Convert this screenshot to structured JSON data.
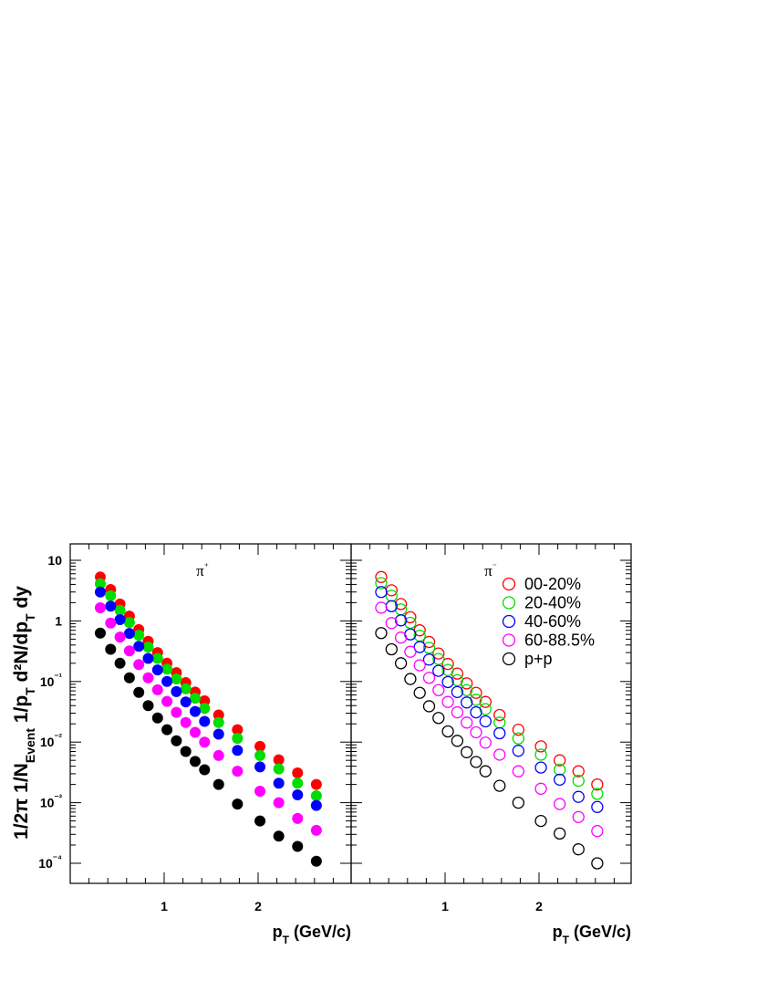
{
  "figure": {
    "ylabel": "1/2π 1/N_Event 1/p_T d²N/dp_T dy",
    "ytick_labels": [
      "10",
      "1",
      "10⁻¹",
      "10⁻²",
      "10⁻³",
      "10⁻⁴"
    ]
  },
  "chart_data": [
    {
      "type": "scatter",
      "panel": "left",
      "title": "π⁺",
      "marker": "filled",
      "xlabel": "p_T (GeV/c)",
      "x_scale": "linear",
      "y_scale": "log",
      "xlim": [
        0.0,
        3.0
      ],
      "ylim": [
        5e-05,
        20
      ],
      "xtick_labels": [
        "1",
        "2"
      ],
      "grid": false,
      "x": [
        0.32,
        0.43,
        0.53,
        0.63,
        0.73,
        0.83,
        0.93,
        1.03,
        1.13,
        1.23,
        1.33,
        1.43,
        1.58,
        1.78,
        2.02,
        2.22,
        2.42,
        2.62
      ],
      "series": [
        {
          "name": "00-20%",
          "color": "#ff0000",
          "values": [
            5.3,
            3.3,
            1.9,
            1.2,
            0.72,
            0.46,
            0.3,
            0.2,
            0.14,
            0.096,
            0.067,
            0.048,
            0.028,
            0.016,
            0.0085,
            0.0051,
            0.0031,
            0.002
          ]
        },
        {
          "name": "20-40%",
          "color": "#00dd00",
          "values": [
            4.1,
            2.6,
            1.5,
            0.94,
            0.58,
            0.37,
            0.24,
            0.16,
            0.11,
            0.076,
            0.053,
            0.036,
            0.021,
            0.0115,
            0.006,
            0.0036,
            0.0021,
            0.0013
          ]
        },
        {
          "name": "40-60%",
          "color": "#0000ff",
          "values": [
            3.0,
            1.75,
            1.05,
            0.62,
            0.38,
            0.24,
            0.155,
            0.1,
            0.068,
            0.046,
            0.032,
            0.022,
            0.0135,
            0.0073,
            0.0039,
            0.0021,
            0.00135,
            0.0009
          ]
        },
        {
          "name": "60-88.5%",
          "color": "#ff00ff",
          "values": [
            1.65,
            0.92,
            0.54,
            0.32,
            0.19,
            0.115,
            0.073,
            0.047,
            0.031,
            0.021,
            0.0145,
            0.01,
            0.006,
            0.0033,
            0.00155,
            0.001,
            0.00055,
            0.00035
          ]
        },
        {
          "name": "p+p",
          "color": "#000000",
          "values": [
            0.63,
            0.34,
            0.2,
            0.115,
            0.066,
            0.04,
            0.025,
            0.016,
            0.0105,
            0.007,
            0.0048,
            0.0035,
            0.002,
            0.00095,
            0.0005,
            0.00028,
            0.00019,
            0.000108
          ]
        }
      ]
    },
    {
      "type": "scatter",
      "panel": "right",
      "title": "π⁻",
      "marker": "open",
      "xlabel": "p_T (GeV/c)",
      "x_scale": "linear",
      "y_scale": "log",
      "xlim": [
        0.0,
        3.0
      ],
      "ylim": [
        5e-05,
        20
      ],
      "xtick_labels": [
        "1",
        "2"
      ],
      "grid": false,
      "legend": "top-right",
      "x": [
        0.32,
        0.43,
        0.53,
        0.63,
        0.73,
        0.83,
        0.93,
        1.03,
        1.13,
        1.23,
        1.33,
        1.43,
        1.58,
        1.78,
        2.02,
        2.22,
        2.42,
        2.62
      ],
      "series": [
        {
          "name": "00-20%",
          "color": "#ff0000",
          "values": [
            5.3,
            3.2,
            1.9,
            1.15,
            0.7,
            0.45,
            0.29,
            0.195,
            0.135,
            0.093,
            0.065,
            0.046,
            0.028,
            0.016,
            0.0085,
            0.005,
            0.0033,
            0.002
          ]
        },
        {
          "name": "20-40%",
          "color": "#00dd00",
          "values": [
            4.2,
            2.6,
            1.55,
            0.93,
            0.57,
            0.36,
            0.235,
            0.155,
            0.105,
            0.072,
            0.05,
            0.035,
            0.021,
            0.0115,
            0.0062,
            0.0035,
            0.0023,
            0.0014
          ]
        },
        {
          "name": "40-60%",
          "color": "#0000ff",
          "values": [
            3.0,
            1.75,
            1.02,
            0.6,
            0.37,
            0.23,
            0.15,
            0.098,
            0.067,
            0.045,
            0.031,
            0.022,
            0.014,
            0.0072,
            0.0038,
            0.0024,
            0.00125,
            0.00085
          ]
        },
        {
          "name": "60-88.5%",
          "color": "#ff00ff",
          "values": [
            1.65,
            0.92,
            0.53,
            0.31,
            0.185,
            0.115,
            0.072,
            0.046,
            0.031,
            0.021,
            0.0145,
            0.0098,
            0.0062,
            0.0033,
            0.0017,
            0.00095,
            0.00058,
            0.00034
          ]
        },
        {
          "name": "p+p",
          "color": "#000000",
          "values": [
            0.63,
            0.34,
            0.2,
            0.11,
            0.065,
            0.039,
            0.025,
            0.015,
            0.0105,
            0.0068,
            0.0047,
            0.0033,
            0.0019,
            0.001,
            0.0005,
            0.00031,
            0.00017,
            0.0001
          ]
        }
      ]
    }
  ]
}
